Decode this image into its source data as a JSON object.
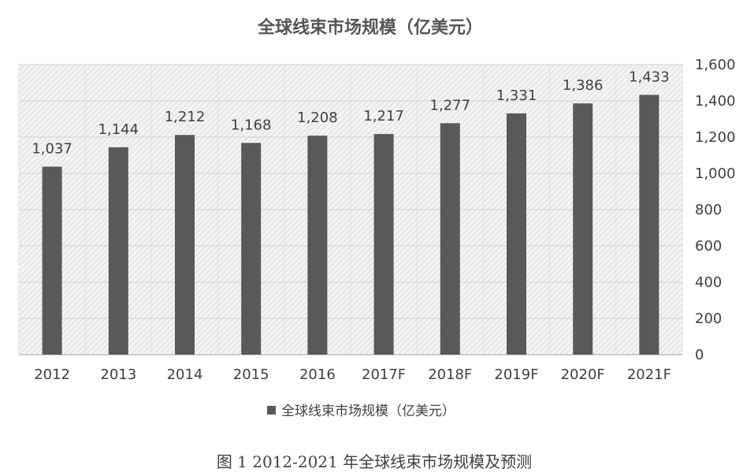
{
  "chart_data": {
    "type": "bar",
    "title": "全球线束市场规模（亿美元）",
    "categories": [
      "2012",
      "2013",
      "2014",
      "2015",
      "2016",
      "2017F",
      "2018F",
      "2019F",
      "2020F",
      "2021F"
    ],
    "series": [
      {
        "name": "全球线束市场规模（亿美元）",
        "values": [
          1037,
          1144,
          1212,
          1168,
          1208,
          1217,
          1277,
          1331,
          1386,
          1433
        ],
        "labels": [
          "1,037",
          "1,144",
          "1,212",
          "1,168",
          "1,208",
          "1,217",
          "1,277",
          "1,331",
          "1,386",
          "1,433"
        ],
        "color": "#595959"
      }
    ],
    "ylim": [
      0,
      1600
    ],
    "yticks": [
      0,
      200,
      400,
      600,
      800,
      1000,
      1200,
      1400,
      1600
    ],
    "ytick_labels": [
      "0",
      "200",
      "400",
      "600",
      "800",
      "1,000",
      "1,200",
      "1,400",
      "1,600"
    ],
    "y_axis_side": "right",
    "grid": true,
    "legend_position": "bottom",
    "plot_background": "hatched light gray"
  },
  "caption": "图 1 2012-2021 年全球线束市场规模及预测"
}
